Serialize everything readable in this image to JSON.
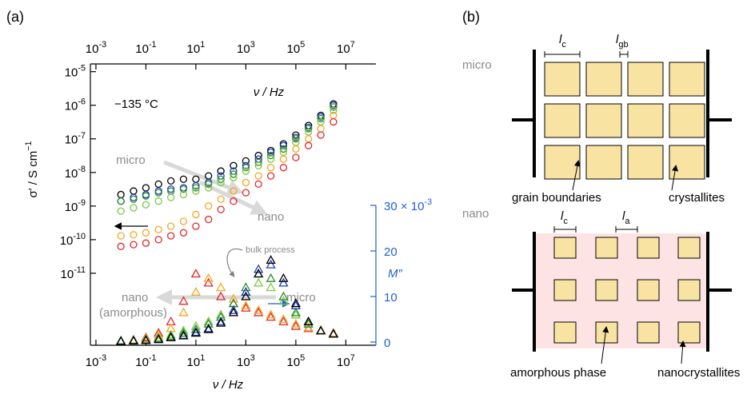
{
  "chart_data": {
    "type": "scatter",
    "panel_label": "(a)",
    "xlabel": "ν / Hz",
    "ylabel": "σ′ / S cm^−1",
    "y2label": "M″",
    "log_x": true,
    "log_y": true,
    "xlim": [
      0.0006,
      160000000
    ],
    "ylim": [
      7.2e-14,
      1.7e-05
    ],
    "y2lim": [
      -0.7,
      30
    ],
    "xticks": [
      {
        "value": 0.001,
        "label": "10^-3"
      },
      {
        "value": 0.1,
        "label": "10^-1"
      },
      {
        "value": 10,
        "label": "10^1"
      },
      {
        "value": 1000,
        "label": "10^3"
      },
      {
        "value": 100000,
        "label": "10^5"
      },
      {
        "value": 10000000,
        "label": "10^7"
      }
    ],
    "yticks": [
      {
        "value": 1e-11,
        "label": "10^-11"
      },
      {
        "value": 1e-10,
        "label": "10^-10"
      },
      {
        "value": 1e-09,
        "label": "10^-9"
      },
      {
        "value": 1e-08,
        "label": "10^-8"
      },
      {
        "value": 1e-07,
        "label": "10^-7"
      },
      {
        "value": 1e-06,
        "label": "10^-6"
      },
      {
        "value": 1e-05,
        "label": "10^-5"
      }
    ],
    "y2ticks": [
      0,
      10,
      20,
      {
        "value": 30,
        "label": "30 × 10^-3"
      }
    ],
    "y2color": "#1f5fd6",
    "annotations": [
      "−135 °C",
      "micro",
      "nano",
      "nano",
      "(amorphous)",
      "micro",
      "bulk process"
    ],
    "x": [
      0.01,
      0.032,
      0.1,
      0.32,
      1,
      3.2,
      10,
      32,
      100,
      320,
      1000,
      3200,
      10000,
      32000,
      100000,
      320000,
      1000000,
      3200000
    ],
    "series": [
      {
        "color": "#000000",
        "marker": "circle",
        "values": [
          2.2e-09,
          2.8e-09,
          3.5e-09,
          4.5e-09,
          5.6e-09,
          6.3e-09,
          6.3e-09,
          7.9e-09,
          1.1e-08,
          1.6e-08,
          2.2e-08,
          3.2e-08,
          4.5e-08,
          7.1e-08,
          1.3e-07,
          2.5e-07,
          5e-07,
          1.1e-06
        ]
      },
      {
        "color": "#1f3fbf",
        "marker": "circle",
        "values": [
          1.4e-09,
          1.8e-09,
          2.2e-09,
          2.8e-09,
          3.2e-09,
          3.5e-09,
          4e-09,
          5e-09,
          7.9e-09,
          1.1e-08,
          1.6e-08,
          2.5e-08,
          4e-08,
          6.3e-08,
          1.1e-07,
          2.2e-07,
          4.5e-07,
          1e-06
        ]
      },
      {
        "color": "#2e8b2e",
        "marker": "circle",
        "values": [
          1.4e-09,
          1.6e-09,
          2e-09,
          2.5e-09,
          2.8e-09,
          3.2e-09,
          3.5e-09,
          4.5e-09,
          6.3e-09,
          8.9e-09,
          1.4e-08,
          2e-08,
          3.2e-08,
          5e-08,
          1e-07,
          2e-07,
          4e-07,
          8.9e-07
        ]
      },
      {
        "color": "#7ac943",
        "marker": "circle",
        "values": [
          7.1e-10,
          8.9e-10,
          1.1e-09,
          1.4e-09,
          1.8e-09,
          2.2e-09,
          2.8e-09,
          3.5e-09,
          5e-09,
          7.1e-09,
          1.1e-08,
          1.6e-08,
          2.5e-08,
          4e-08,
          7.9e-08,
          1.6e-07,
          3.2e-07,
          7.1e-07
        ]
      },
      {
        "color": "#f5a623",
        "marker": "circle",
        "values": [
          1.3e-10,
          1.4e-10,
          1.6e-10,
          2e-10,
          2.5e-10,
          3.5e-10,
          5.6e-10,
          1e-09,
          1.6e-09,
          2.8e-09,
          5e-09,
          7.9e-09,
          1.4e-08,
          2.5e-08,
          5e-08,
          1e-07,
          2e-07,
          5e-07
        ]
      },
      {
        "color": "#e3262b",
        "marker": "circle",
        "values": [
          6.3e-11,
          7.1e-11,
          7.9e-11,
          1e-10,
          1.3e-10,
          1.6e-10,
          2.5e-10,
          4e-10,
          7.9e-10,
          1.4e-09,
          2.5e-09,
          4.5e-09,
          7.9e-09,
          1.4e-08,
          2.8e-08,
          6.3e-08,
          1.3e-07,
          3.2e-07
        ]
      },
      {
        "color": "#e3262b",
        "marker": "triangle",
        "axis": "y2",
        "values": [
          0.3,
          0.5,
          1.0,
          2.0,
          4.5,
          9,
          15,
          13,
          10,
          8.5,
          7.5,
          6.5,
          5.5,
          4.5,
          3.5,
          3.0,
          2.5,
          2.0
        ]
      },
      {
        "color": "#f5a623",
        "marker": "triangle",
        "axis": "y2",
        "values": [
          0.3,
          0.5,
          0.8,
          1.5,
          3,
          6.5,
          11,
          14,
          12,
          9.5,
          8,
          7,
          6,
          5,
          4,
          3.2,
          2.6,
          2.0
        ]
      },
      {
        "color": "#7ac943",
        "marker": "triangle",
        "axis": "y2",
        "values": [
          0.3,
          0.4,
          0.6,
          1,
          1.6,
          2.5,
          3.5,
          4.5,
          6,
          8.5,
          11,
          13,
          12,
          9,
          6,
          4,
          2.5,
          1.8
        ]
      },
      {
        "color": "#2e8b2e",
        "marker": "triangle",
        "axis": "y2",
        "values": [
          0.3,
          0.4,
          0.5,
          0.8,
          1.3,
          2,
          2.8,
          4,
          5.5,
          8.5,
          12,
          15,
          14,
          10,
          6.5,
          4,
          2.5,
          1.8
        ]
      },
      {
        "color": "#1f3fbf",
        "marker": "triangle",
        "axis": "y2",
        "values": [
          0.2,
          0.3,
          0.4,
          0.6,
          1.0,
          1.5,
          2.2,
          3,
          4.5,
          7,
          11,
          16,
          17,
          13,
          8,
          4.5,
          2.5,
          1.8
        ]
      },
      {
        "color": "#000000",
        "marker": "triangle",
        "axis": "y2",
        "values": [
          0.2,
          0.3,
          0.4,
          0.6,
          1.0,
          1.4,
          2.0,
          2.8,
          4.2,
          6.5,
          10,
          15,
          18,
          14,
          8.5,
          4.5,
          2.5,
          1.8
        ]
      }
    ]
  },
  "diagram": {
    "panel_label": "(b)",
    "micro": {
      "label": "micro",
      "lc": {
        "symbol": "l",
        "subscript": "c"
      },
      "lgb": {
        "symbol": "l",
        "subscript": "gb"
      },
      "left_caption": "grain boundaries",
      "right_caption": "crystallites"
    },
    "nano": {
      "label": "nano",
      "lc": {
        "symbol": "l",
        "subscript": "c"
      },
      "la": {
        "symbol": "l",
        "subscript": "a"
      },
      "left_caption": "amorphous phase",
      "right_caption": "nanocrystallites"
    }
  }
}
